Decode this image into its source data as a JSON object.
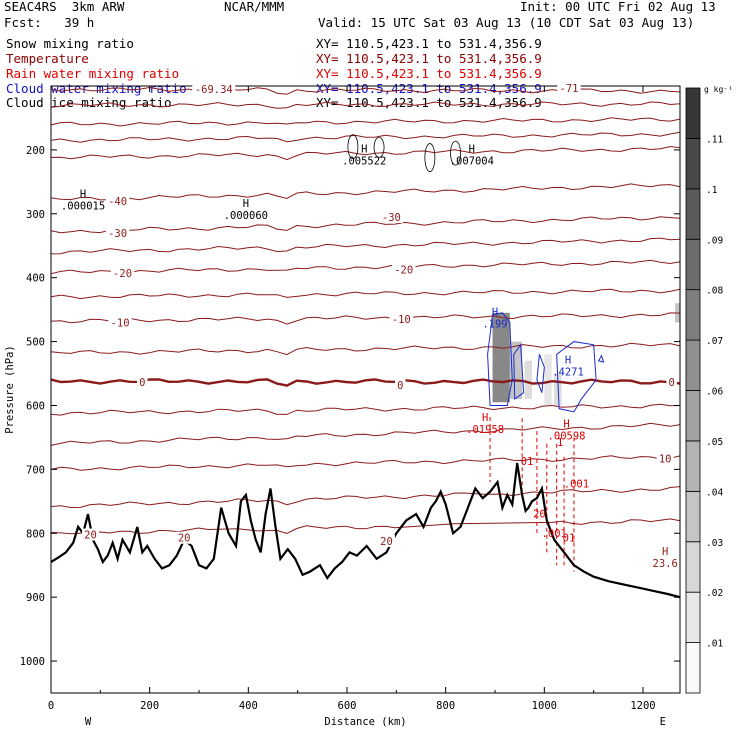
{
  "header": {
    "model": "SEAC4RS  3km ARW",
    "org": "NCAR/MMM",
    "init": "Init: 00 UTC Fri 02 Aug 13",
    "fcst": "Fcst:   39 h",
    "valid": "Valid: 15 UTC Sat 03 Aug 13 (10 CDT Sat 03 Aug 13)"
  },
  "fields": [
    {
      "name": "Snow mixing ratio",
      "xy": "XY= 110.5,423.1 to 531.4,356.9",
      "color": "#000000"
    },
    {
      "name": "Temperature",
      "xy": "XY= 110.5,423.1 to 531.4,356.9",
      "color": "#8b0000"
    },
    {
      "name": "Rain water mixing ratio",
      "xy": "XY= 110.5,423.1 to 531.4,356.9",
      "color": "#e00000"
    },
    {
      "name": "Cloud water mixing ratio",
      "xy": "XY= 110.5,423.1 to 531.4,356.9",
      "color": "#1010c8"
    },
    {
      "name": "Cloud ice mixing ratio",
      "xy": "XY= 110.5,423.1 to 531.4,356.9",
      "color": "#000000"
    }
  ],
  "chart_data": {
    "type": "cross-section",
    "xlabel": "Distance (km)",
    "ylabel": "Pressure (hPa)",
    "xlim": [
      0,
      1275
    ],
    "ylim": [
      1050,
      100
    ],
    "x_ticks": [
      0,
      200,
      400,
      600,
      800,
      1000,
      1200
    ],
    "y_ticks": [
      200,
      300,
      400,
      500,
      600,
      700,
      800,
      900,
      1000
    ],
    "x_end_labels": {
      "left": "W",
      "right": "E"
    },
    "colorbar": {
      "unit": "g kg⁻¹",
      "levels": [
        ".01",
        ".02",
        ".03",
        ".04",
        ".05",
        ".06",
        ".07",
        ".08",
        ".09",
        ".1",
        ".11"
      ]
    },
    "temperature_isotherm_labels": [
      {
        "label": "-69.34",
        "x": 330,
        "p": 105
      },
      {
        "label": "-40",
        "x": 135,
        "p": 280
      },
      {
        "label": "-30",
        "x": 135,
        "p": 330
      },
      {
        "label": "-30",
        "x": 690,
        "p": 305
      },
      {
        "label": "-20",
        "x": 145,
        "p": 393
      },
      {
        "label": "-20",
        "x": 715,
        "p": 387
      },
      {
        "label": "-10",
        "x": 140,
        "p": 470
      },
      {
        "label": "-10",
        "x": 710,
        "p": 465
      },
      {
        "label": "0",
        "x": 185,
        "p": 563
      },
      {
        "label": "0",
        "x": 708,
        "p": 568
      },
      {
        "label": "0",
        "x": 1258,
        "p": 563
      },
      {
        "label": "10",
        "x": 1245,
        "p": 683
      },
      {
        "label": "20",
        "x": 80,
        "p": 802
      },
      {
        "label": "20",
        "x": 270,
        "p": 807
      },
      {
        "label": "20",
        "x": 680,
        "p": 812
      },
      {
        "label": "-71",
        "x": 1050,
        "p": 103
      }
    ],
    "extrema_labels": [
      {
        "field": "snow",
        "label": "H",
        "value": ".000015",
        "x": 65,
        "p": 290
      },
      {
        "field": "snow",
        "label": "H",
        "value": ".000060",
        "x": 395,
        "p": 305
      },
      {
        "field": "snow",
        "label": "H",
        "value": ".005522",
        "x": 635,
        "p": 220
      },
      {
        "field": "snow",
        "label": "H",
        "value": ".007004",
        "x": 853,
        "p": 220
      },
      {
        "field": "cloud_water",
        "label": "H",
        "value": ".199",
        "x": 900,
        "p": 475
      },
      {
        "field": "cloud_water",
        "label": "H",
        "value": ".4271",
        "x": 1048,
        "p": 550
      },
      {
        "field": "rain",
        "label": "H",
        "value": ".01958",
        "x": 880,
        "p": 640
      },
      {
        "field": "rain",
        "label": "H",
        "value": ".00598",
        "x": 1045,
        "p": 650
      },
      {
        "field": "rain",
        "label": "",
        "value": ".001",
        "x": 1065,
        "p": 725
      },
      {
        "field": "rain",
        "label": "",
        "value": ".001",
        "x": 1020,
        "p": 803
      },
      {
        "field": "rain",
        "label": "",
        "value": "01",
        "x": 965,
        "p": 690
      },
      {
        "field": "rain",
        "label": "",
        "value": "1",
        "x": 1032,
        "p": 660
      },
      {
        "field": "rain",
        "label": "",
        "value": "20",
        "x": 990,
        "p": 772
      },
      {
        "field": "rain",
        "label": "",
        "value": "01",
        "x": 1050,
        "p": 810
      },
      {
        "field": "surface",
        "label": "H",
        "value": "23.6",
        "x": 1245,
        "p": 850
      }
    ],
    "terrain": {
      "x": [
        0,
        15,
        30,
        45,
        55,
        65,
        75,
        85,
        95,
        105,
        115,
        125,
        135,
        145,
        160,
        175,
        185,
        195,
        210,
        225,
        240,
        255,
        270,
        285,
        300,
        315,
        330,
        345,
        360,
        375,
        385,
        395,
        405,
        415,
        425,
        435,
        445,
        455,
        465,
        480,
        495,
        510,
        525,
        545,
        560,
        575,
        590,
        605,
        620,
        640,
        660,
        680,
        700,
        720,
        740,
        755,
        770,
        780,
        790,
        800,
        815,
        830,
        845,
        860,
        875,
        890,
        905,
        915,
        925,
        935,
        945,
        955,
        962,
        968,
        975,
        985,
        995,
        1005,
        1020,
        1040,
        1060,
        1080,
        1100,
        1130,
        1160,
        1190,
        1220,
        1250,
        1275
      ],
      "p": [
        845,
        838,
        830,
        815,
        790,
        800,
        770,
        810,
        825,
        845,
        835,
        815,
        840,
        810,
        830,
        790,
        830,
        820,
        840,
        855,
        850,
        835,
        810,
        820,
        850,
        855,
        840,
        760,
        800,
        820,
        750,
        740,
        780,
        810,
        830,
        770,
        730,
        790,
        840,
        825,
        840,
        865,
        860,
        850,
        870,
        855,
        845,
        830,
        835,
        820,
        840,
        830,
        800,
        780,
        770,
        790,
        760,
        750,
        735,
        755,
        800,
        790,
        760,
        730,
        745,
        735,
        720,
        760,
        740,
        755,
        690,
        740,
        765,
        760,
        750,
        745,
        730,
        780,
        810,
        830,
        850,
        860,
        868,
        875,
        880,
        885,
        890,
        895,
        900
      ]
    },
    "temperature_levels": [
      {
        "value": "-69.34",
        "p_left": 105,
        "p_right": 108
      },
      {
        "value": "",
        "p_left": 130,
        "p_right": 128
      },
      {
        "value": "",
        "p_left": 160,
        "p_right": 152
      },
      {
        "value": "",
        "p_left": 185,
        "p_right": 175
      },
      {
        "value": "",
        "p_left": 212,
        "p_right": 198
      },
      {
        "value": "-40",
        "p_left": 278,
        "p_right": 255
      },
      {
        "value": "-30",
        "p_left": 328,
        "p_right": 305
      },
      {
        "value": "",
        "p_left": 360,
        "p_right": 340
      },
      {
        "value": "-20",
        "p_left": 392,
        "p_right": 375
      },
      {
        "value": "",
        "p_left": 430,
        "p_right": 420
      },
      {
        "value": "-10",
        "p_left": 468,
        "p_right": 458
      },
      {
        "value": "",
        "p_left": 518,
        "p_right": 505
      },
      {
        "value": "0",
        "p_left": 562,
        "p_right": 563
      },
      {
        "value": "",
        "p_left": 612,
        "p_right": 600
      },
      {
        "value": "",
        "p_left": 660,
        "p_right": 630
      },
      {
        "value": "10",
        "p_left": 700,
        "p_right": 680
      },
      {
        "value": "",
        "p_left": 758,
        "p_right": 730
      },
      {
        "value": "20",
        "p_left": 800,
        "p_right": 780
      }
    ]
  }
}
